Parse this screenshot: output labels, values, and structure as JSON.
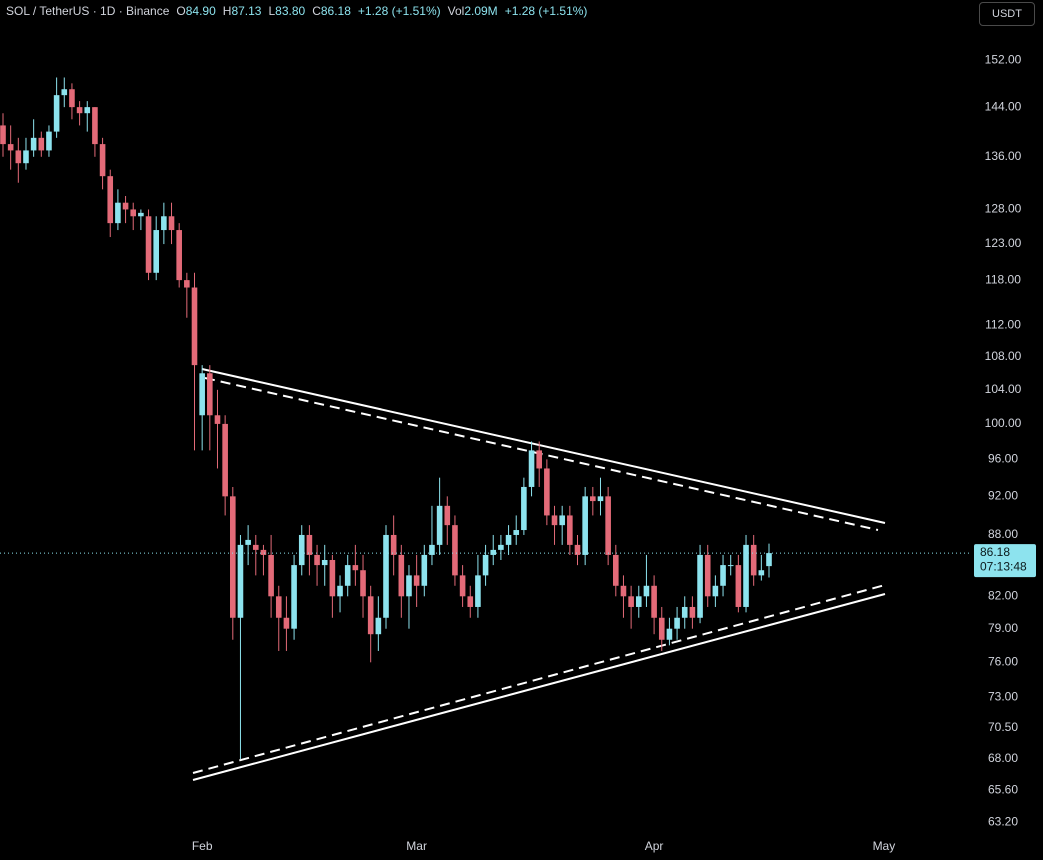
{
  "header": {
    "symbol": "SOL / TetherUS · 1D · Binance",
    "ohlc": [
      {
        "label": "O",
        "value": "84.90"
      },
      {
        "label": "H",
        "value": "87.13"
      },
      {
        "label": "L",
        "value": "83.80"
      },
      {
        "label": "C",
        "value": "86.18"
      }
    ],
    "change": "+1.28 (+1.51%)",
    "volume": {
      "label": "Vol",
      "value": "2.09M"
    },
    "volume_change": "+1.28 (+1.51%)",
    "currency": "USDT"
  },
  "chart_data": {
    "type": "candlestick",
    "log_scale": true,
    "grid": false,
    "up_color": "#8de3ee",
    "down_color": "#e36a78",
    "categories": [
      null,
      null,
      null,
      null,
      null,
      null,
      null,
      null,
      null,
      null,
      null,
      null,
      null,
      null,
      null,
      null,
      null,
      null,
      null,
      null,
      null,
      null,
      null,
      null,
      null,
      null,
      "Feb",
      null,
      null,
      null,
      null,
      null,
      null,
      null,
      null,
      null,
      null,
      null,
      null,
      null,
      null,
      null,
      null,
      null,
      null,
      null,
      null,
      null,
      null,
      null,
      null,
      null,
      null,
      null,
      "Mar",
      null,
      null,
      null,
      null,
      null,
      null,
      null,
      null,
      null,
      null,
      null,
      null,
      null,
      null,
      null,
      null,
      null,
      null,
      null,
      null,
      null,
      null,
      null,
      null,
      null,
      null,
      null,
      null,
      null,
      null,
      "Apr",
      null,
      null,
      null,
      null,
      null,
      null,
      null,
      null,
      null,
      null,
      null,
      null,
      null,
      null,
      null,
      null,
      null,
      null,
      null,
      null,
      null,
      null,
      null,
      null,
      null,
      null,
      null,
      null,
      null,
      "May"
    ],
    "open": [
      141,
      138,
      137,
      135,
      137,
      139,
      137,
      140,
      146,
      147,
      144,
      143,
      144,
      138,
      133,
      126,
      129,
      128,
      127,
      127,
      119,
      125,
      127,
      125,
      118,
      117,
      101,
      106,
      101,
      100,
      92,
      80,
      87,
      87,
      86.5,
      86,
      82,
      80,
      79,
      85,
      88,
      86,
      85,
      85.5,
      82,
      83,
      85,
      84.5,
      82,
      78.5,
      80,
      88,
      86,
      82,
      84,
      83,
      86,
      87,
      91,
      89,
      84,
      82,
      81,
      84,
      86,
      86.5,
      87,
      88,
      88.5,
      93,
      97,
      95,
      90,
      89,
      90,
      87,
      86,
      92,
      91.5,
      92,
      86,
      83,
      82,
      81,
      82,
      83,
      80,
      78,
      79,
      80,
      81,
      80,
      86,
      82,
      83,
      85,
      85,
      81,
      87,
      84,
      84.9,
      null,
      null,
      null,
      null,
      null,
      null,
      null,
      null,
      null,
      null,
      null,
      null,
      null,
      null,
      null
    ],
    "high": [
      143,
      141,
      139,
      139,
      142,
      140,
      141,
      149,
      149,
      148,
      145,
      145,
      144,
      139,
      134,
      131,
      130,
      129,
      128,
      128,
      127,
      129,
      129,
      126,
      119,
      119,
      107,
      107,
      104,
      101,
      93,
      88,
      89,
      88,
      87,
      88,
      83,
      82,
      86,
      89,
      89,
      87,
      87,
      86,
      84,
      86,
      87,
      86,
      83,
      82,
      89,
      90,
      87,
      85,
      86,
      87,
      91,
      94,
      92,
      90,
      85,
      83,
      86,
      87,
      88,
      88,
      89,
      90,
      94,
      98,
      98,
      96,
      91,
      91,
      91,
      88,
      93,
      93,
      94,
      93,
      87,
      84,
      83,
      83,
      86,
      84,
      81,
      80,
      81,
      82,
      82,
      87,
      87,
      84,
      86,
      86,
      86,
      88,
      88,
      86,
      87.13,
      null,
      null,
      null,
      null,
      null,
      null,
      null,
      null,
      null,
      null,
      null,
      null,
      null,
      null,
      null
    ],
    "low": [
      136,
      134,
      132,
      134,
      136,
      136,
      136,
      139,
      144,
      142,
      141,
      140,
      136,
      131,
      124,
      125,
      126,
      125,
      125,
      118,
      118,
      123,
      123,
      117,
      113,
      97,
      97,
      97,
      95,
      90,
      78,
      68,
      85,
      84,
      84,
      80,
      77,
      77,
      78,
      84,
      84,
      83,
      83,
      80,
      80.5,
      82,
      83,
      80,
      76,
      77,
      79,
      84,
      80,
      79,
      81,
      82,
      85,
      86,
      87,
      83,
      81,
      80,
      80,
      83,
      85,
      85.5,
      86,
      87,
      88,
      92,
      93,
      89,
      87,
      87,
      86,
      85,
      85,
      90,
      90,
      85,
      82,
      80,
      79,
      80,
      81,
      78.5,
      77,
      77.5,
      78,
      79,
      79,
      79.5,
      81,
      81,
      82,
      84,
      80.5,
      80.5,
      83,
      83.5,
      83.8,
      null,
      null,
      null,
      null,
      null,
      null,
      null,
      null,
      null,
      null,
      null,
      null,
      null,
      null,
      null
    ],
    "close": [
      138,
      137,
      135,
      137,
      139,
      137,
      140,
      146,
      147,
      144,
      143,
      144,
      138,
      133,
      126,
      129,
      128,
      127,
      127.5,
      119,
      125,
      127,
      125,
      118,
      117,
      107,
      106,
      101,
      100,
      92,
      80,
      87,
      87.5,
      86.5,
      86,
      82,
      80,
      79,
      85,
      88,
      86,
      85,
      85.5,
      82,
      83,
      85,
      84.5,
      82,
      78.5,
      80,
      88,
      86,
      82,
      84,
      83,
      86,
      87,
      91,
      89,
      84,
      82,
      81,
      84,
      86,
      86.5,
      87,
      88,
      88.5,
      93,
      97,
      95,
      90,
      89,
      90,
      87,
      86,
      92,
      91.5,
      92,
      86,
      83,
      82,
      81,
      82,
      83,
      80,
      78,
      79,
      80,
      81,
      80,
      86,
      82,
      83,
      85,
      85,
      81,
      87,
      84,
      84.5,
      86.18,
      null,
      null,
      null,
      null,
      null,
      null,
      null,
      null,
      null,
      null,
      null,
      null,
      null,
      null,
      null
    ],
    "ylim": [
      62.3,
      162.9
    ],
    "yticks": [
      {
        "value": 152,
        "label": "152.00"
      },
      {
        "value": 144,
        "label": "144.00"
      },
      {
        "value": 136,
        "label": "136.00"
      },
      {
        "value": 128,
        "label": "128.00"
      },
      {
        "value": 123,
        "label": "123.00"
      },
      {
        "value": 118,
        "label": "118.00"
      },
      {
        "value": 112,
        "label": "112.00"
      },
      {
        "value": 108,
        "label": "108.00"
      },
      {
        "value": 104,
        "label": "104.00"
      },
      {
        "value": 100,
        "label": "100.00"
      },
      {
        "value": 96,
        "label": "96.00"
      },
      {
        "value": 92,
        "label": "92.00"
      },
      {
        "value": 88,
        "label": "88.00"
      },
      {
        "value": 82,
        "label": "82.00"
      },
      {
        "value": 79,
        "label": "79.00"
      },
      {
        "value": 76,
        "label": "76.00"
      },
      {
        "value": 73,
        "label": "73.00"
      },
      {
        "value": 70.5,
        "label": "70.50"
      },
      {
        "value": 68,
        "label": "68.00"
      },
      {
        "value": 65.6,
        "label": "65.60"
      },
      {
        "value": 63.2,
        "label": "63.20"
      }
    ],
    "last_price": 86.18,
    "countdown": "07:13:48"
  }
}
